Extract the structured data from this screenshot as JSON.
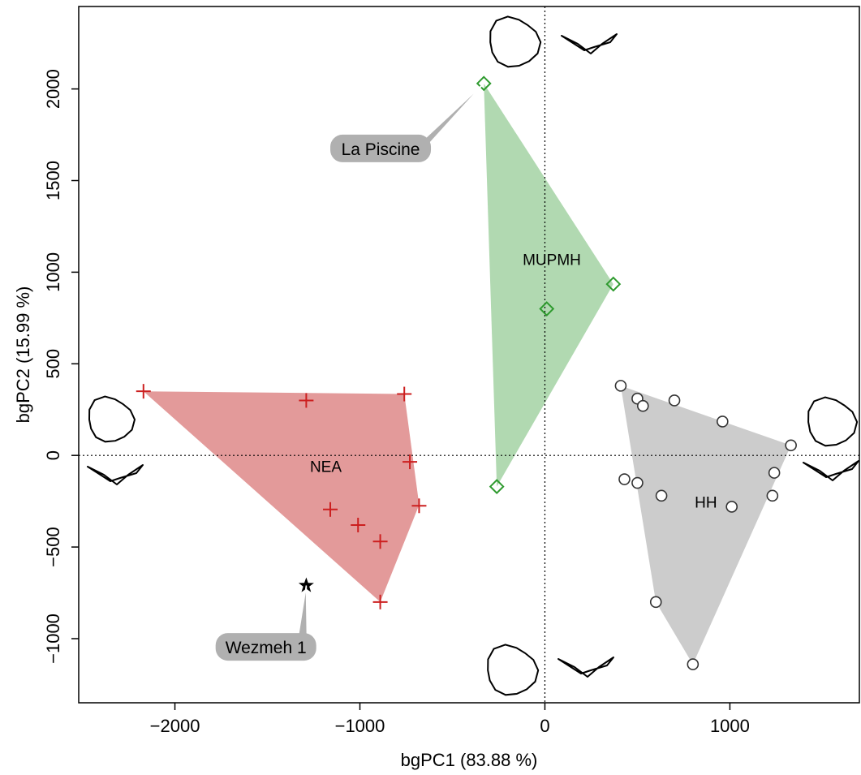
{
  "chart_data": {
    "type": "scatter",
    "title": "",
    "xlabel": "bgPC1 (83.88 %)",
    "ylabel": "bgPC2 (15.99 %)",
    "xlim": [
      -2520,
      1700
    ],
    "ylim": [
      -1350,
      2450
    ],
    "xticks": [
      -2000,
      -1000,
      0,
      1000
    ],
    "yticks": [
      -1000,
      -500,
      0,
      500,
      1000,
      1500,
      2000
    ],
    "xtick_labels": [
      "−2000",
      "−1000",
      "0",
      "1000"
    ],
    "ytick_labels": [
      "−1000",
      "−500",
      "0",
      "500",
      "1000",
      "1500",
      "2000"
    ],
    "reference_lines": {
      "x": 0,
      "y": 0,
      "style": "dotted"
    },
    "grid": false,
    "legend": "none",
    "series": [
      {
        "name": "NEA",
        "marker": "plus",
        "color": "#cc1f1f",
        "fill": "#e39a9a",
        "label_at": [
          -1270,
          -90
        ],
        "hull": [
          [
            -2170,
            350
          ],
          [
            -760,
            335
          ],
          [
            -680,
            -270
          ],
          [
            -890,
            -800
          ]
        ],
        "points": [
          [
            -2170,
            350
          ],
          [
            -1290,
            300
          ],
          [
            -760,
            335
          ],
          [
            -730,
            -35
          ],
          [
            -680,
            -275
          ],
          [
            -1160,
            -295
          ],
          [
            -1010,
            -380
          ],
          [
            -890,
            -470
          ],
          [
            -890,
            -800
          ]
        ]
      },
      {
        "name": "MUPMH",
        "marker": "diamond",
        "color": "#2e9a2e",
        "fill": "#b1d9b1",
        "label_at": [
          -120,
          1040
        ],
        "hull": [
          [
            -330,
            2030
          ],
          [
            370,
            935
          ],
          [
            -260,
            -170
          ]
        ],
        "points": [
          [
            -330,
            2030
          ],
          [
            370,
            935
          ],
          [
            10,
            800
          ],
          [
            -260,
            -170
          ]
        ]
      },
      {
        "name": "HH",
        "marker": "circle",
        "color": "#333333",
        "fill": "#cccccc",
        "label_at": [
          810,
          -285
        ],
        "hull": [
          [
            410,
            380
          ],
          [
            1330,
            55
          ],
          [
            800,
            -1140
          ],
          [
            600,
            -800
          ]
        ],
        "points": [
          [
            410,
            380
          ],
          [
            500,
            310
          ],
          [
            530,
            270
          ],
          [
            700,
            300
          ],
          [
            960,
            185
          ],
          [
            1330,
            55
          ],
          [
            1240,
            -95
          ],
          [
            430,
            -130
          ],
          [
            500,
            -150
          ],
          [
            630,
            -220
          ],
          [
            1010,
            -280
          ],
          [
            1230,
            -220
          ],
          [
            600,
            -800
          ],
          [
            800,
            -1140
          ]
        ]
      }
    ],
    "extra_points": [
      {
        "name": "Wezmeh 1",
        "marker": "star",
        "color": "#000000",
        "x": -1290,
        "y": -710
      }
    ],
    "annotations": [
      {
        "text": "La Piscine",
        "target": [
          -330,
          2030
        ],
        "box_at": [
          -1160,
          1600
        ],
        "fill": "#b0b0b0"
      },
      {
        "text": "Wezmeh 1",
        "target": [
          -1290,
          -710
        ],
        "box_at": [
          -1780,
          -1120
        ],
        "fill": "#b0b0b0"
      }
    ],
    "outline_glyphs": [
      "top",
      "left",
      "right",
      "bottom"
    ]
  }
}
